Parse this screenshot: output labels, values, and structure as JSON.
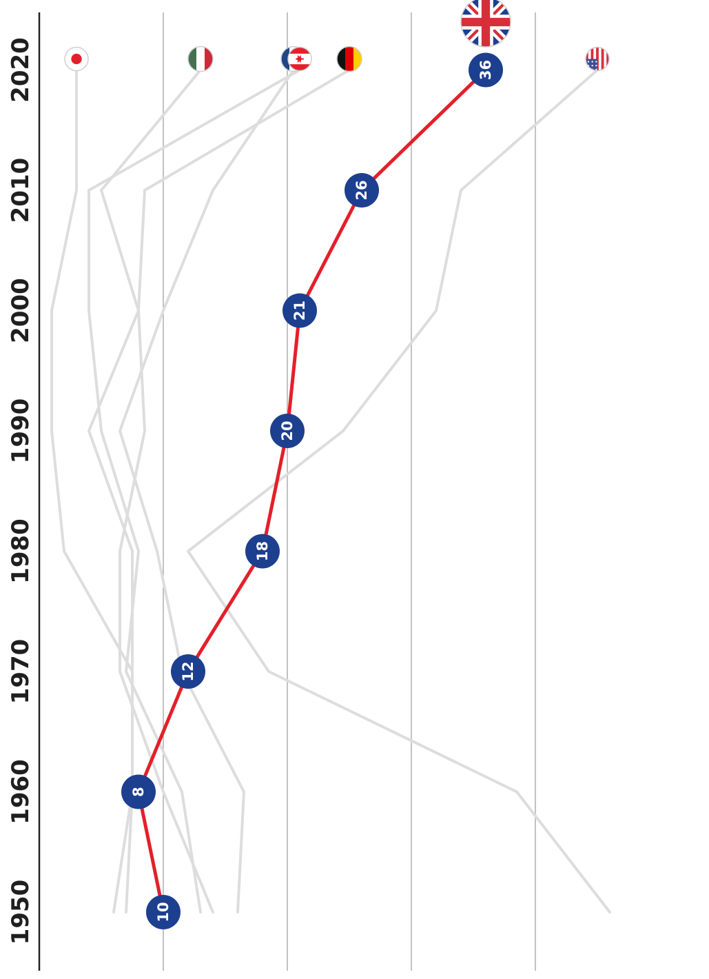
{
  "chart_data": {
    "type": "line",
    "orientation": "rotated-90",
    "title": "",
    "xlabel": "",
    "ylabel": "",
    "x": [
      "1950",
      "1960",
      "1970",
      "1980",
      "1990",
      "2000",
      "2010",
      "2020"
    ],
    "ylim": [
      0,
      45
    ],
    "grid": true,
    "highlight_series": {
      "country": "United Kingdom",
      "flag": "uk-flag-icon",
      "color": "#e3202a",
      "marker_color": "#1d3f8f",
      "values": [
        10,
        8,
        12,
        18,
        20,
        21,
        26,
        36
      ],
      "labels": [
        "10",
        "8",
        "12",
        "18",
        "20",
        "21",
        "26",
        "36"
      ]
    },
    "series": [
      {
        "country": "Japan",
        "flag": "japan-flag-icon",
        "color": "#dddddd",
        "values": [
          6.0,
          7.5,
          7.5,
          2.0,
          1.0,
          1.0,
          3.0,
          3.0
        ]
      },
      {
        "country": "Hungary",
        "flag": "hungary-flag-icon",
        "color": "#dddddd",
        "values": [
          7.0,
          7.5,
          7.5,
          7.5,
          4.0,
          8.0,
          5.0,
          13.0
        ]
      },
      {
        "country": "Netherlands",
        "flag": "netherlands-flag-icon",
        "color": "#dddddd",
        "values": [
          16.0,
          16.5,
          11.5,
          9.5,
          6.5,
          10.0,
          14.0,
          20.5
        ]
      },
      {
        "country": "Canada",
        "flag": "canada-flag-icon",
        "color": "#dddddd",
        "values": [
          13.0,
          11.5,
          7.0,
          8.0,
          5.0,
          4.0,
          4.0,
          21.0
        ]
      },
      {
        "country": "Germany",
        "flag": "germany-flag-icon",
        "color": "#dddddd",
        "values": [
          14.0,
          10.0,
          6.5,
          6.5,
          8.5,
          8.0,
          8.5,
          25.0
        ]
      },
      {
        "country": "United States",
        "flag": "usa-flag-icon",
        "color": "#dddddd",
        "values": [
          46.0,
          38.5,
          18.5,
          12.0,
          24.5,
          32.0,
          34.0,
          45.0
        ]
      }
    ]
  }
}
